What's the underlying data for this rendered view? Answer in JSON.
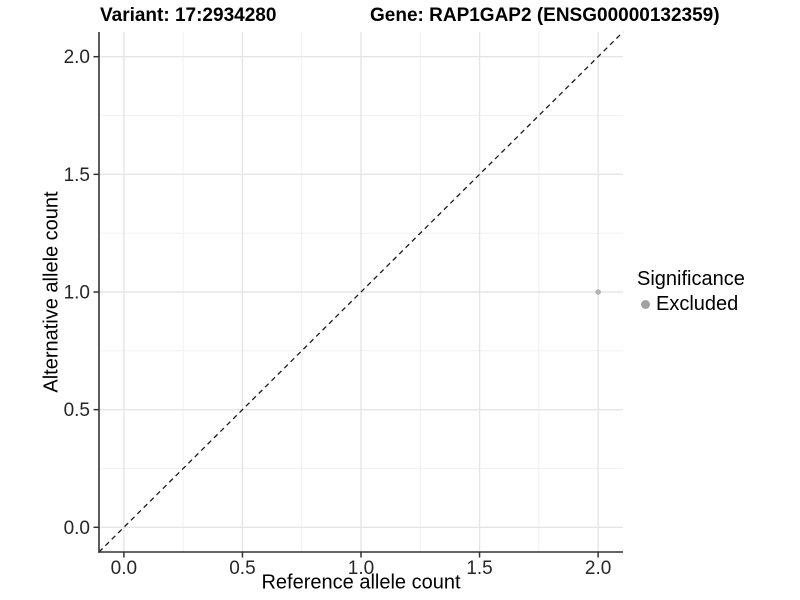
{
  "header": {
    "variant_title": "Variant: 17:2934280",
    "gene_title": "Gene: RAP1GAP2 (ENSG00000132359)"
  },
  "chart_data": {
    "type": "scatter",
    "title": "Variant: 17:2934280  Gene: RAP1GAP2 (ENSG00000132359)",
    "xlabel": "Reference allele count",
    "ylabel": "Alternative allele count",
    "xlim": [
      -0.105,
      2.105
    ],
    "ylim": [
      -0.105,
      2.105
    ],
    "x_ticks": [
      0.0,
      0.5,
      1.0,
      1.5,
      2.0
    ],
    "y_ticks": [
      0.0,
      0.5,
      1.0,
      1.5,
      2.0
    ],
    "x_minor_ticks": [
      0.25,
      0.75,
      1.25,
      1.75
    ],
    "y_minor_ticks": [
      0.25,
      0.75,
      1.25,
      1.75
    ],
    "grid": true,
    "points": [
      {
        "x": 2.0,
        "y": 1.0,
        "series": "Excluded"
      }
    ],
    "reference_line": {
      "type": "identity",
      "from": [
        -0.105,
        -0.105
      ],
      "to": [
        2.105,
        2.105
      ],
      "style": "dashed"
    },
    "legend": {
      "position": "right",
      "title": "Significance",
      "items": [
        {
          "label": "Excluded",
          "color": "#a0a0a0"
        }
      ]
    },
    "colors": {
      "point": "#b3b3b3",
      "legend_key": "#a0a0a0",
      "grid_major": "#e5e5e5",
      "grid_minor": "#f1f1f1",
      "axis_line": "#333333",
      "tick_mark": "#333333",
      "tick_label": "#262626",
      "dashed_line": "#1a1a1a",
      "background": "#ffffff"
    }
  }
}
